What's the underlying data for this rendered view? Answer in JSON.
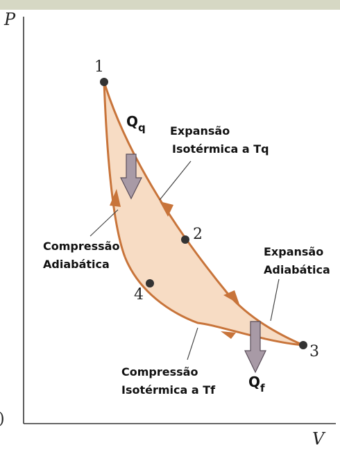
{
  "axes": {
    "y_label": "P",
    "x_label": "V",
    "margin_mark": ")"
  },
  "points": [
    {
      "id": "1",
      "label": "1"
    },
    {
      "id": "2",
      "label": "2"
    },
    {
      "id": "3",
      "label": "3"
    },
    {
      "id": "4",
      "label": "4"
    }
  ],
  "heat": {
    "hot": {
      "main": "Q",
      "sub": "q"
    },
    "cold": {
      "main": "Q",
      "sub": "f"
    }
  },
  "processes": {
    "isothermal_expansion": [
      "Expansão",
      "Isotérmica a Tq"
    ],
    "adiabatic_expansion": [
      "Expansão",
      "Adiabática"
    ],
    "isothermal_compression": [
      "Compressão",
      "Isotérmica a Tf"
    ],
    "adiabatic_compression": [
      "Compressão",
      "Adiabática"
    ]
  },
  "colors": {
    "cycle_stroke": "#c8743a",
    "cycle_fill": "#f7dcc4",
    "heat_arrow": "#a89aa6",
    "point": "#333333",
    "axis": "#333333",
    "top_band": "#d6d8c4"
  }
}
